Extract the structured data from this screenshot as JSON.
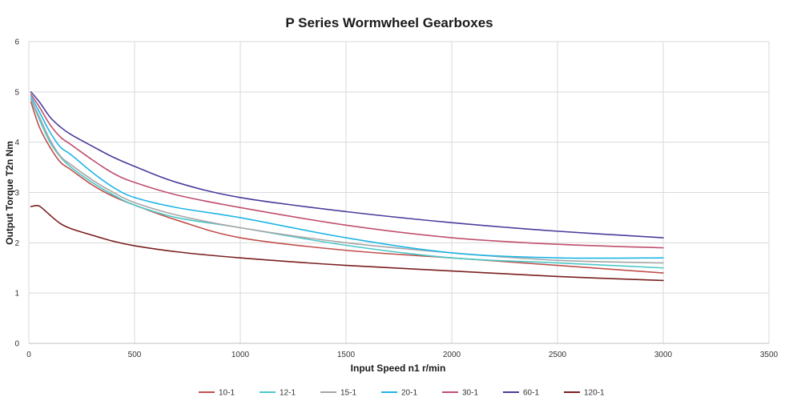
{
  "chart_data": {
    "type": "line",
    "title": "P Series Wormwheel Gearboxes",
    "xlabel": "Input Speed n1 r/min",
    "ylabel": "Output Torque T2n Nm",
    "xlim": [
      0,
      3500
    ],
    "ylim": [
      0,
      6
    ],
    "x_ticks": [
      "0",
      "500",
      "1000",
      "1500",
      "2000",
      "2500",
      "3000",
      "3500"
    ],
    "y_ticks": [
      "0",
      "1",
      "2",
      "3",
      "4",
      "5",
      "6"
    ],
    "grid": "vertical and horizontal",
    "legend_position": "bottom",
    "series": [
      {
        "name": "10-1",
        "color": "#c0504d",
        "x": [
          10,
          50,
          100,
          150,
          200,
          300,
          400,
          500,
          700,
          1000,
          1500,
          2000,
          2500,
          3000
        ],
        "y": [
          4.8,
          4.3,
          3.9,
          3.6,
          3.45,
          3.15,
          2.92,
          2.75,
          2.45,
          2.1,
          1.85,
          1.7,
          1.55,
          1.4
        ]
      },
      {
        "name": "12-1",
        "color": "#4bc8c8",
        "x": [
          10,
          50,
          100,
          150,
          200,
          300,
          400,
          500,
          700,
          1000,
          1500,
          2000,
          2500,
          3000
        ],
        "y": [
          4.85,
          4.45,
          4.0,
          3.7,
          3.5,
          3.2,
          2.95,
          2.75,
          2.5,
          2.3,
          1.95,
          1.7,
          1.6,
          1.5
        ]
      },
      {
        "name": "15-1",
        "color": "#a6a6a6",
        "x": [
          10,
          50,
          100,
          150,
          200,
          300,
          400,
          500,
          700,
          1000,
          1500,
          2000,
          2500,
          3000
        ],
        "y": [
          4.85,
          4.5,
          4.05,
          3.72,
          3.55,
          3.25,
          3.0,
          2.8,
          2.55,
          2.3,
          2.0,
          1.8,
          1.65,
          1.6
        ]
      },
      {
        "name": "20-1",
        "color": "#1fb5e6",
        "x": [
          10,
          50,
          100,
          150,
          200,
          300,
          400,
          500,
          700,
          1000,
          1500,
          2000,
          2500,
          3000
        ],
        "y": [
          4.9,
          4.6,
          4.2,
          3.9,
          3.75,
          3.4,
          3.1,
          2.9,
          2.7,
          2.5,
          2.1,
          1.8,
          1.7,
          1.7
        ]
      },
      {
        "name": "30-1",
        "color": "#c0506e",
        "x": [
          10,
          50,
          100,
          150,
          200,
          300,
          400,
          500,
          700,
          1000,
          1500,
          2000,
          2500,
          3000
        ],
        "y": [
          4.95,
          4.7,
          4.35,
          4.1,
          3.95,
          3.65,
          3.38,
          3.2,
          2.95,
          2.7,
          2.35,
          2.1,
          1.97,
          1.9
        ]
      },
      {
        "name": "60-1",
        "color": "#4a3d9c",
        "x": [
          10,
          50,
          100,
          150,
          200,
          300,
          400,
          500,
          700,
          1000,
          1500,
          2000,
          2500,
          3000
        ],
        "y": [
          5.0,
          4.8,
          4.5,
          4.3,
          4.15,
          3.92,
          3.7,
          3.52,
          3.2,
          2.9,
          2.62,
          2.4,
          2.23,
          2.1
        ]
      },
      {
        "name": "120-1",
        "color": "#7a1f1f",
        "x": [
          10,
          40,
          60,
          100,
          150,
          200,
          300,
          400,
          500,
          700,
          1000,
          1500,
          2000,
          2500,
          3000
        ],
        "y": [
          2.72,
          2.74,
          2.7,
          2.55,
          2.38,
          2.28,
          2.15,
          2.03,
          1.94,
          1.82,
          1.7,
          1.55,
          1.44,
          1.33,
          1.25
        ]
      }
    ]
  }
}
